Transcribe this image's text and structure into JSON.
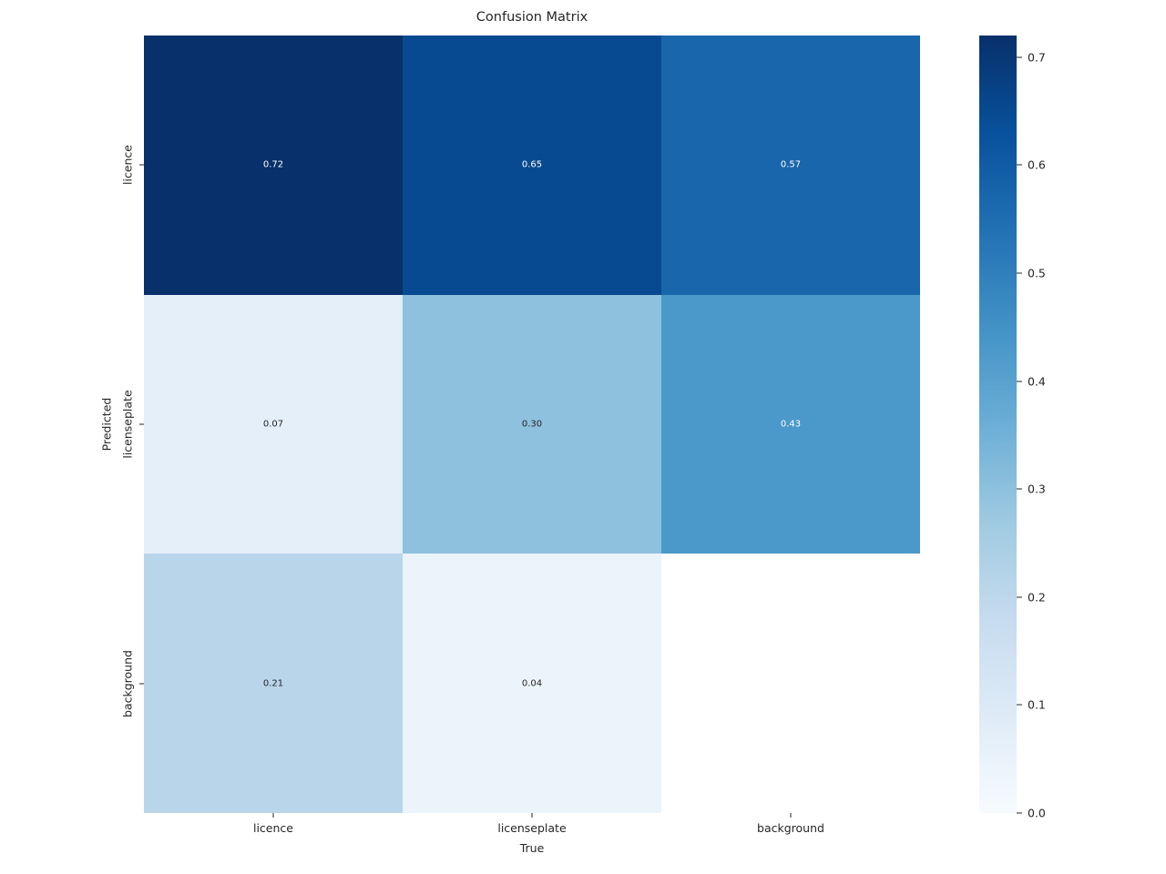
{
  "colors": {
    "background": "#ffffff",
    "text": "#262626",
    "annot_light": "#ffffff",
    "annot_dark": "#262626"
  },
  "chart_data": {
    "type": "heatmap",
    "title": "Confusion Matrix",
    "xlabel": "True",
    "ylabel": "Predicted",
    "x_categories": [
      "licence",
      "licenseplate",
      "background"
    ],
    "y_categories": [
      "licence",
      "licenseplate",
      "background"
    ],
    "matrix": [
      [
        0.72,
        0.65,
        0.57
      ],
      [
        0.07,
        0.3,
        0.43
      ],
      [
        0.21,
        0.04,
        null
      ]
    ],
    "cell_labels": [
      [
        "0.72",
        "0.65",
        "0.57"
      ],
      [
        "0.07",
        "0.30",
        "0.43"
      ],
      [
        "0.21",
        "0.04",
        ""
      ]
    ],
    "cell_colors": [
      [
        "#08306b",
        "#084a91",
        "#1966ad"
      ],
      [
        "#e4eff9",
        "#8dc1dd",
        "#4b98ca"
      ],
      [
        "#b9d5ea",
        "#ecf4fb",
        "#ffffff"
      ]
    ],
    "cell_text_colors": [
      [
        "#ffffff",
        "#ffffff",
        "#ffffff"
      ],
      [
        "#262626",
        "#262626",
        "#ffffff"
      ],
      [
        "#262626",
        "#262626",
        "#262626"
      ]
    ],
    "colormap": "Blues",
    "vmin": 0.0,
    "vmax": 0.72,
    "grid": false,
    "legend": false,
    "colorbar": {
      "position": "right",
      "tick_values": [
        0.7,
        0.6,
        0.5,
        0.4,
        0.3,
        0.2,
        0.1,
        0.0
      ],
      "tick_labels": [
        "0.7",
        "0.6",
        "0.5",
        "0.4",
        "0.3",
        "0.2",
        "0.1",
        "0.0"
      ],
      "gradient_stops": [
        "#f7fbff",
        "#deebf7",
        "#c6dbef",
        "#9ecae1",
        "#6baed6",
        "#4292c6",
        "#2171b5",
        "#08519c",
        "#08306b"
      ]
    }
  }
}
